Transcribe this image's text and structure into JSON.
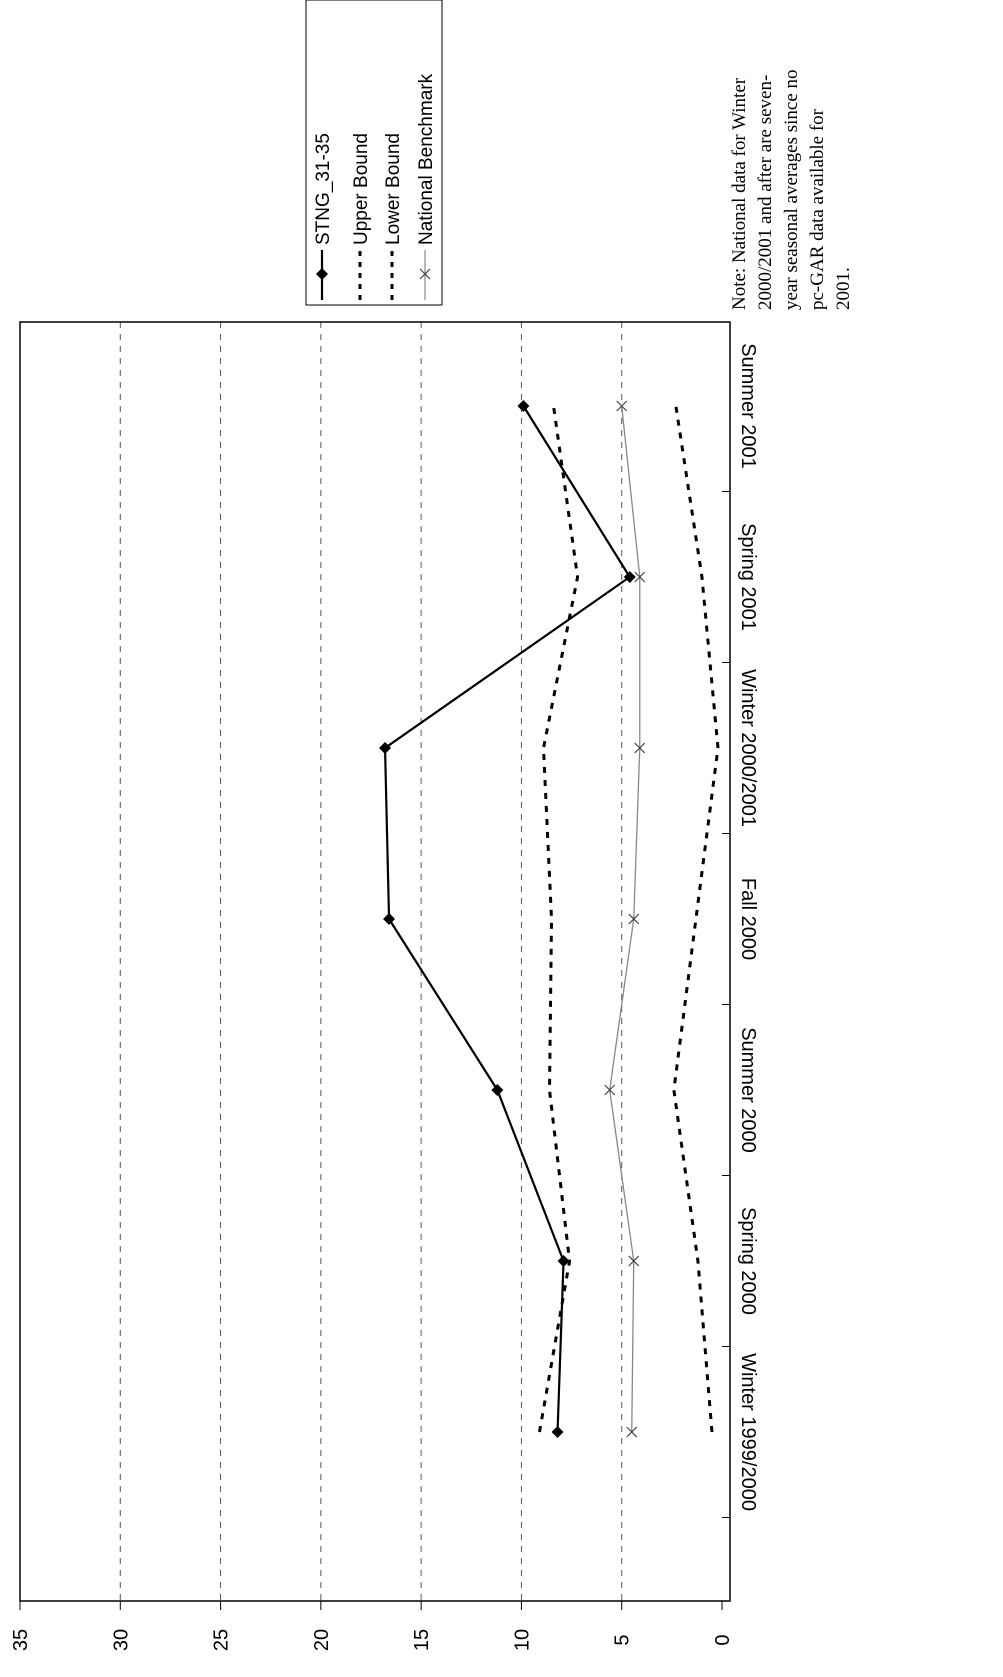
{
  "chart_data": {
    "type": "line",
    "orientation": "rotated-90-clockwise",
    "categories": [
      "Winter 1999/2000",
      "Spring 2000",
      "Summer 2000",
      "Fall 2000",
      "Winter 2000/2001",
      "Spring 2001",
      "Summer 2001"
    ],
    "ylim": [
      0,
      35
    ],
    "yticks": [
      "0",
      "5",
      "10",
      "15",
      "20",
      "25",
      "30",
      "35"
    ],
    "grid": true,
    "legend_position": "top-right",
    "series": [
      {
        "name": "STNG_31-35",
        "style": "solid",
        "marker": "diamond",
        "color": "#000000",
        "values": [
          8.2,
          7.9,
          11.2,
          16.6,
          16.8,
          4.6,
          9.9
        ]
      },
      {
        "name": "Upper Bound",
        "style": "dotted",
        "marker": "none",
        "color": "#000000",
        "values": [
          9.1,
          7.6,
          8.6,
          8.5,
          8.9,
          7.2,
          8.4
        ]
      },
      {
        "name": "Lower Bound",
        "style": "dotted",
        "marker": "none",
        "color": "#000000",
        "values": [
          0.5,
          1.2,
          2.4,
          1.3,
          0.2,
          1.0,
          2.3
        ]
      },
      {
        "name": "National Benchmark",
        "style": "thin",
        "marker": "x",
        "color": "#888888",
        "values": [
          4.5,
          4.4,
          5.6,
          4.4,
          4.1,
          4.1,
          5.0
        ]
      }
    ],
    "note": "Note: National data for Winter 2000/2001 and after are seven-year seasonal averages since no pc-GAR data available for 2001."
  }
}
